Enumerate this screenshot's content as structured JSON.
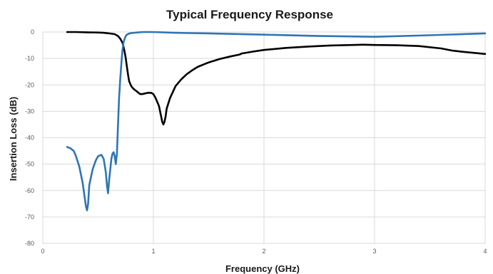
{
  "chart_data": {
    "type": "line",
    "title": "Typical Frequency Response",
    "xlabel": "Frequency (GHz)",
    "ylabel": "Insertion Loss (dB)",
    "xlim": [
      0,
      4
    ],
    "ylim": [
      -80,
      0
    ],
    "xticks": [
      0,
      1,
      2,
      3,
      4
    ],
    "xtick_labels": [
      "0",
      "1",
      "2",
      "3",
      "4"
    ],
    "yticks": [
      0,
      -10,
      -20,
      -30,
      -40,
      -50,
      -60,
      -70,
      -80
    ],
    "ytick_labels": [
      "0",
      "-10",
      "-20",
      "-30",
      "-40",
      "-50",
      "-60",
      "-70",
      "-80"
    ],
    "grid": true,
    "legend": "none",
    "series": [
      {
        "color": "#000000",
        "x": [
          0.22,
          0.3,
          0.4,
          0.5,
          0.55,
          0.6,
          0.65,
          0.68,
          0.7,
          0.72,
          0.73,
          0.74,
          0.75,
          0.76,
          0.77,
          0.78,
          0.79,
          0.8,
          0.82,
          0.85,
          0.88,
          0.9,
          0.95,
          0.98,
          1.0,
          1.02,
          1.05,
          1.07,
          1.08,
          1.09,
          1.1,
          1.11,
          1.12,
          1.15,
          1.2,
          1.25,
          1.3,
          1.35,
          1.4,
          1.5,
          1.6,
          1.7,
          1.78,
          1.8,
          1.9,
          2.0,
          2.2,
          2.4,
          2.6,
          2.8,
          2.9,
          3.0,
          3.2,
          3.4,
          3.6,
          3.7,
          3.8,
          3.9,
          4.0
        ],
        "y": [
          0,
          0,
          -0.1,
          -0.2,
          -0.3,
          -0.5,
          -0.8,
          -1.5,
          -2.5,
          -4,
          -5.5,
          -7.5,
          -10,
          -13,
          -16,
          -18.5,
          -19.5,
          -20.5,
          -21.5,
          -22.5,
          -23.5,
          -23.5,
          -23,
          -23,
          -23.5,
          -25,
          -28,
          -32,
          -34,
          -35,
          -34,
          -32,
          -29,
          -25,
          -20.5,
          -18,
          -16,
          -14.5,
          -13.2,
          -11.5,
          -10.2,
          -9.2,
          -8.5,
          -8.1,
          -7.4,
          -6.8,
          -6,
          -5.5,
          -5.1,
          -4.9,
          -4.8,
          -4.9,
          -5,
          -5.3,
          -6.2,
          -7,
          -7.5,
          -7.9,
          -8.3
        ]
      },
      {
        "color": "#2e75b6",
        "x": [
          0.22,
          0.25,
          0.28,
          0.3,
          0.33,
          0.36,
          0.38,
          0.39,
          0.4,
          0.41,
          0.42,
          0.45,
          0.48,
          0.5,
          0.53,
          0.55,
          0.57,
          0.58,
          0.59,
          0.6,
          0.62,
          0.63,
          0.64,
          0.65,
          0.66,
          0.67,
          0.68,
          0.69,
          0.7,
          0.71,
          0.72,
          0.73,
          0.74,
          0.75,
          0.76,
          0.78,
          0.8,
          0.85,
          0.9,
          1.0,
          1.2,
          1.5,
          2.0,
          2.5,
          3.0,
          3.5,
          4.0
        ],
        "y": [
          -43.5,
          -44,
          -45,
          -47,
          -51,
          -57,
          -63,
          -66,
          -67.5,
          -65,
          -58,
          -52,
          -48.5,
          -47,
          -46.5,
          -48,
          -53,
          -58,
          -61,
          -56,
          -48,
          -46,
          -45.5,
          -47,
          -50,
          -46,
          -35,
          -25,
          -18,
          -12,
          -7,
          -4,
          -2.5,
          -1.5,
          -1,
          -0.6,
          -0.4,
          -0.2,
          0,
          0,
          -0.3,
          -0.5,
          -1,
          -1.5,
          -1.8,
          -1.2,
          -0.5
        ]
      }
    ]
  }
}
